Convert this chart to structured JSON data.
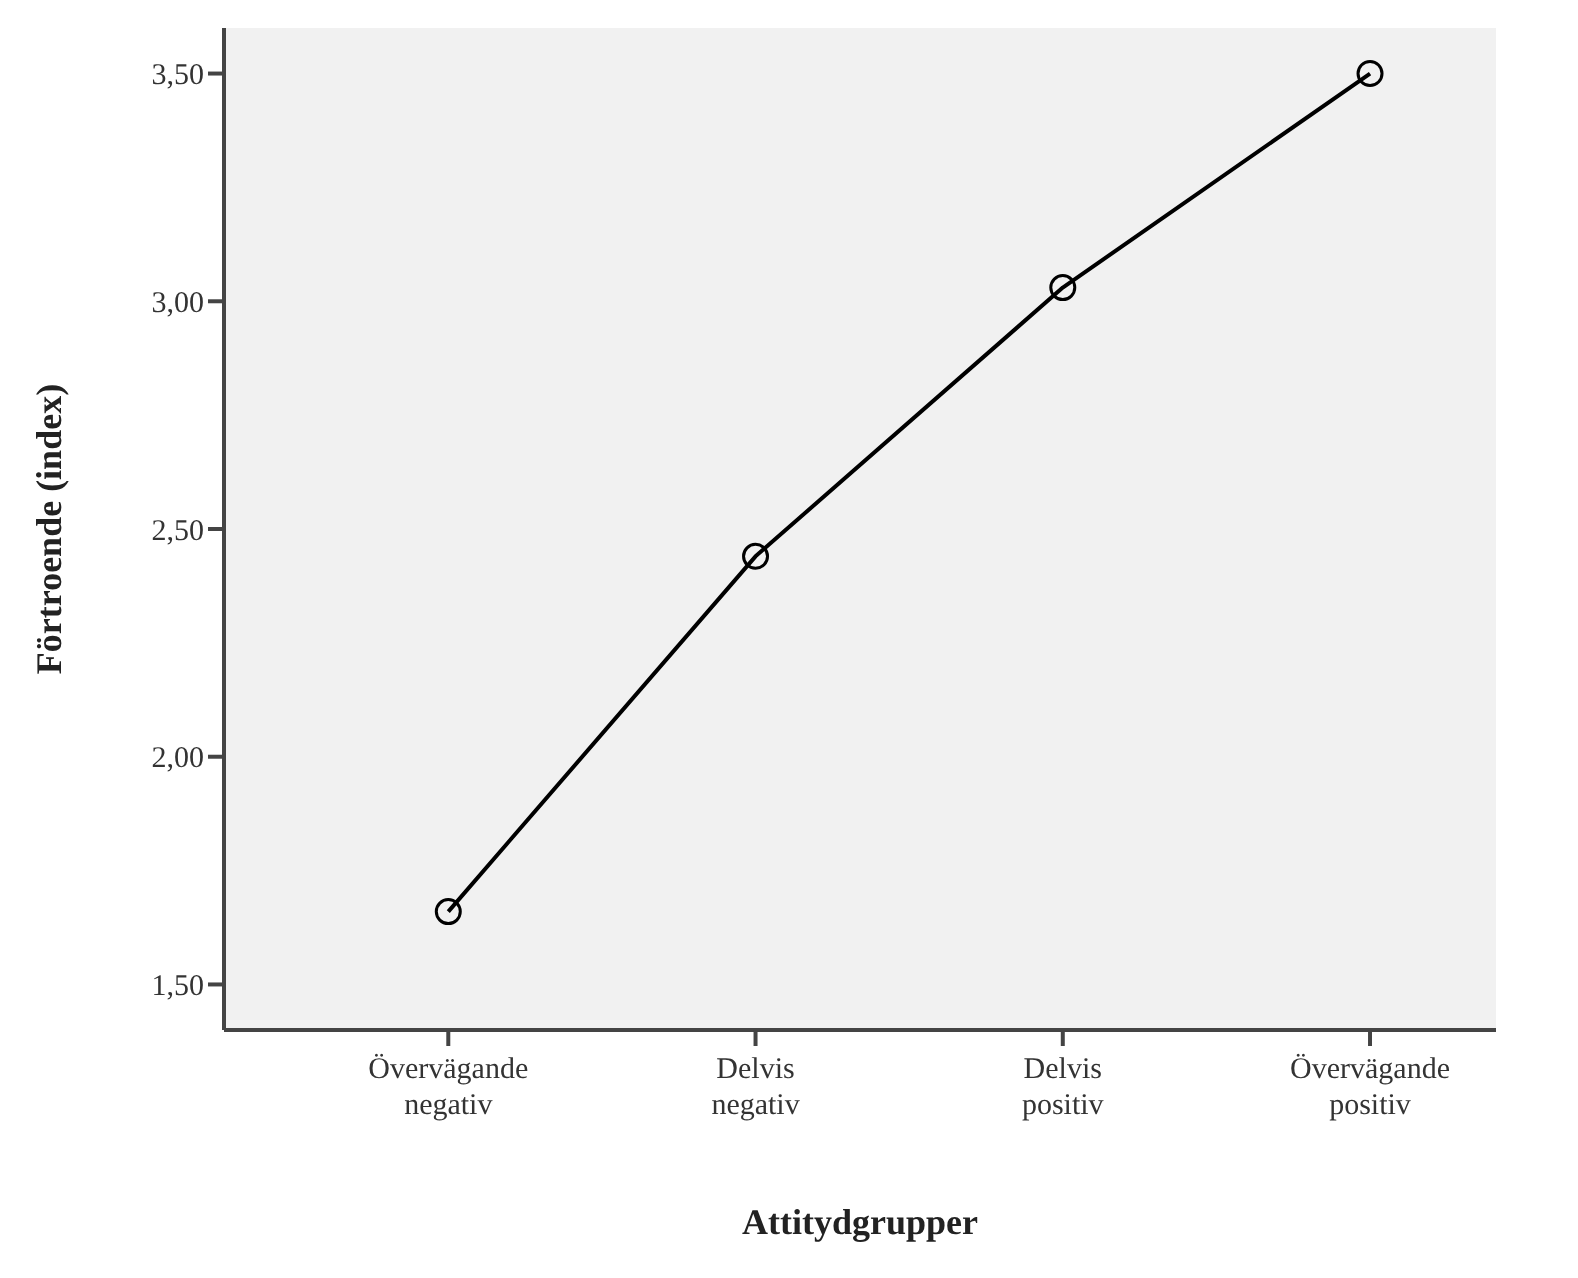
{
  "chart_data": {
    "type": "line",
    "xlabel": "Attitydgrupper",
    "ylabel": "Förtroende (index)",
    "categories": [
      "Övervägande negativ",
      "Delvis negativ",
      "Delvis positiv",
      "Övervägande positiv"
    ],
    "series": [
      {
        "color": "#000000",
        "values": [
          1.66,
          2.44,
          3.03,
          3.5
        ]
      }
    ],
    "ylim": [
      1.4,
      3.6
    ],
    "yticks": [
      {
        "value": 1.5,
        "label": "1,50"
      },
      {
        "value": 2,
        "label": "2,00"
      },
      {
        "value": 2.5,
        "label": "2,50"
      },
      {
        "value": 3,
        "label": "3,00"
      },
      {
        "value": 3.5,
        "label": "3,50"
      }
    ],
    "grid": false,
    "legend": false,
    "marker": "circle",
    "line_style": "solid"
  }
}
